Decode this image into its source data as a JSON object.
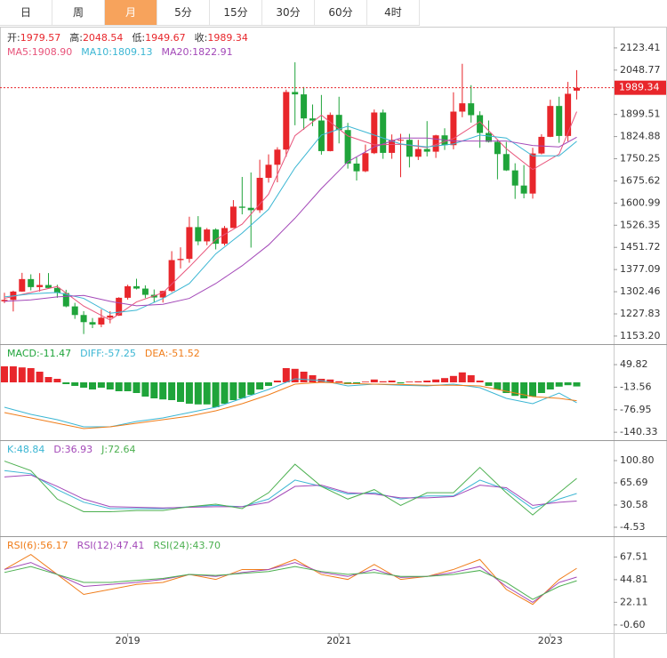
{
  "tabs": [
    "日",
    "周",
    "月",
    "5分",
    "15分",
    "30分",
    "60分",
    "4时"
  ],
  "active_tab": 2,
  "chart_data": [
    {
      "type": "candlestick",
      "categories": [
        null,
        null,
        null,
        null,
        null,
        null,
        null,
        null,
        null,
        null,
        null,
        null,
        null,
        null,
        "2019",
        null,
        null,
        null,
        null,
        null,
        null,
        null,
        null,
        null,
        null,
        null,
        null,
        null,
        null,
        null,
        null,
        null,
        null,
        null,
        null,
        null,
        null,
        null,
        "2021",
        null,
        null,
        null,
        null,
        null,
        null,
        null,
        null,
        null,
        null,
        null,
        null,
        null,
        null,
        null,
        null,
        null,
        null,
        null,
        null,
        null,
        null,
        null,
        "2023",
        null,
        null,
        null
      ],
      "open": [
        1270,
        1275,
        1303,
        1345,
        1318,
        1325,
        1315,
        1298,
        1253,
        1224,
        1200,
        1192,
        1215,
        1222,
        1282,
        1321,
        1313,
        1292,
        1283,
        1305,
        1409,
        1413,
        1520,
        1472,
        1512,
        1464,
        1517,
        1589,
        1585,
        1577,
        1686,
        1730,
        1781,
        1975,
        1967,
        1886,
        1879,
        1776,
        1898,
        1847,
        1734,
        1708,
        1769,
        1906,
        1770,
        1814,
        1814,
        1757,
        1783,
        1774,
        1829,
        1796,
        1909,
        1937,
        1897,
        1837,
        1807,
        1766,
        1711,
        1660,
        1633,
        1768,
        1824,
        1928,
        1827,
        1979.57
      ],
      "high": [
        1299,
        1306,
        1366,
        1361,
        1365,
        1365,
        1326,
        1309,
        1265,
        1237,
        1214,
        1243,
        1237,
        1284,
        1326,
        1346,
        1324,
        1310,
        1306,
        1439,
        1452,
        1555,
        1557,
        1517,
        1516,
        1524,
        1611,
        1689,
        1704,
        1747,
        1765,
        1789,
        1983,
        2075,
        1992,
        1933,
        1965,
        1906,
        1959,
        1871,
        1755,
        1798,
        1916,
        1916,
        1832,
        1834,
        1834,
        1814,
        1877,
        1831,
        1853,
        1974,
        2070,
        1998,
        1910,
        1879,
        1814,
        1807,
        1735,
        1729,
        1787,
        1833,
        1949,
        1959,
        2009,
        2048.54
      ],
      "low": [
        1264,
        1236,
        1302,
        1307,
        1303,
        1314,
        1282,
        1250,
        1211,
        1160,
        1180,
        1183,
        1196,
        1221,
        1276,
        1310,
        1281,
        1266,
        1266,
        1301,
        1381,
        1400,
        1459,
        1459,
        1445,
        1458,
        1517,
        1563,
        1451,
        1568,
        1670,
        1671,
        1757,
        1863,
        1848,
        1860,
        1764,
        1775,
        1802,
        1717,
        1677,
        1705,
        1766,
        1750,
        1750,
        1688,
        1721,
        1746,
        1758,
        1753,
        1780,
        1782,
        1890,
        1872,
        1787,
        1805,
        1681,
        1709,
        1615,
        1617,
        1616,
        1765,
        1823,
        1804,
        1809,
        1949.67
      ],
      "close": [
        1275,
        1303,
        1345,
        1318,
        1325,
        1315,
        1298,
        1253,
        1224,
        1200,
        1192,
        1215,
        1222,
        1282,
        1321,
        1313,
        1292,
        1283,
        1305,
        1409,
        1413,
        1520,
        1472,
        1512,
        1464,
        1517,
        1589,
        1585,
        1577,
        1686,
        1730,
        1781,
        1975,
        1967,
        1886,
        1879,
        1776,
        1898,
        1847,
        1734,
        1708,
        1769,
        1906,
        1770,
        1814,
        1814,
        1757,
        1783,
        1774,
        1829,
        1796,
        1909,
        1937,
        1897,
        1837,
        1807,
        1766,
        1711,
        1660,
        1633,
        1768,
        1824,
        1928,
        1827,
        1969,
        1989.34
      ],
      "up_color": "#e8262b",
      "down_color": "#1fa43a",
      "ylim": [
        1123,
        2186
      ],
      "yticks": [
        {
          "value": 1153.2,
          "label": "1153.20"
        },
        1227.83,
        1302.46,
        1377.09,
        1451.72,
        1526.35,
        1600.99,
        1675.62,
        1750.25,
        1824.88,
        1899.51,
        2048.77,
        2123.41
      ],
      "last_price": 1989.34,
      "legend": [
        [
          {
            "label": "开:",
            "value": "1979.57",
            "color": "#e8262b"
          },
          {
            "label": "高:",
            "value": "2048.54",
            "color": "#e8262b"
          },
          {
            "label": "低:",
            "value": "1949.67",
            "color": "#e8262b"
          },
          {
            "label": "收:",
            "value": "1989.34",
            "color": "#e8262b"
          }
        ],
        [
          {
            "label": "MA5:",
            "value": "1908.90",
            "color": "#e8537a",
            "label_color": "#e8537a"
          },
          {
            "label": "MA10:",
            "value": "1809.13",
            "color": "#3bb6d3",
            "label_color": "#3bb6d3"
          },
          {
            "label": "MA20:",
            "value": "1822.91",
            "color": "#a348b8",
            "label_color": "#a348b8"
          }
        ]
      ],
      "series": [
        {
          "name": "MA5",
          "color": "#e8537a",
          "x": [
            0,
            3,
            6,
            9,
            12,
            15,
            18,
            21,
            24,
            27,
            30,
            33,
            36,
            39,
            42,
            45,
            48,
            51,
            54,
            57,
            60,
            63,
            65
          ],
          "values": [
            1280,
            1300,
            1320,
            1254,
            1207,
            1268,
            1299,
            1386,
            1478,
            1530,
            1631,
            1828,
            1897,
            1827,
            1797,
            1799,
            1788,
            1818,
            1875,
            1784,
            1714,
            1766,
            1908.9
          ]
        },
        {
          "name": "MA10",
          "color": "#3bb6d3",
          "x": [
            0,
            3,
            6,
            9,
            12,
            15,
            18,
            21,
            24,
            27,
            30,
            33,
            36,
            39,
            42,
            45,
            48,
            51,
            54,
            57,
            60,
            63,
            65
          ],
          "values": [
            1285,
            1295,
            1300,
            1280,
            1230,
            1240,
            1280,
            1330,
            1430,
            1500,
            1580,
            1720,
            1830,
            1860,
            1830,
            1800,
            1790,
            1800,
            1830,
            1820,
            1760,
            1760,
            1809.13
          ]
        },
        {
          "name": "MA20",
          "color": "#a348b8",
          "x": [
            0,
            3,
            6,
            9,
            12,
            15,
            18,
            21,
            24,
            27,
            30,
            33,
            36,
            39,
            42,
            45,
            48,
            51,
            54,
            57,
            60,
            63,
            65
          ],
          "values": [
            1270,
            1275,
            1285,
            1290,
            1270,
            1255,
            1260,
            1280,
            1330,
            1390,
            1460,
            1550,
            1650,
            1740,
            1790,
            1820,
            1820,
            1810,
            1810,
            1810,
            1795,
            1790,
            1822.91
          ]
        }
      ]
    },
    {
      "type": "macd",
      "values": [
        45,
        45,
        42,
        40,
        30,
        15,
        10,
        -5,
        -10,
        -15,
        -20,
        -15,
        -20,
        -25,
        -25,
        -30,
        -40,
        -45,
        -48,
        -50,
        -55,
        -60,
        -62,
        -62,
        -70,
        -60,
        -50,
        -45,
        -35,
        -20,
        -10,
        5,
        40,
        38,
        30,
        20,
        10,
        8,
        3,
        -5,
        -5,
        2,
        8,
        3,
        5,
        -3,
        2,
        3,
        5,
        8,
        12,
        18,
        28,
        20,
        5,
        -10,
        -20,
        -30,
        -38,
        -45,
        -40,
        -30,
        -20,
        -12,
        -8,
        -11.47
      ],
      "up_color": "#e8262b",
      "down_color": "#1fa43a",
      "ylim": [
        -155,
        105
      ],
      "yticks": [
        49.82,
        -13.56,
        -76.95,
        -140.33
      ],
      "legend": [
        [
          {
            "label": "MACD:",
            "value": "-11.47",
            "color": "#1fa43a",
            "label_color": "#1fa43a"
          },
          {
            "label": "DIFF:",
            "value": "-57.25",
            "color": "#3bb6d3",
            "label_color": "#3bb6d3"
          },
          {
            "label": "DEA:",
            "value": "-51.52",
            "color": "#f07d1a",
            "label_color": "#f07d1a"
          }
        ]
      ],
      "series": [
        {
          "name": "DIFF",
          "color": "#3bb6d3",
          "x": [
            0,
            3,
            6,
            9,
            12,
            15,
            18,
            21,
            24,
            27,
            30,
            33,
            36,
            39,
            42,
            45,
            48,
            51,
            54,
            57,
            60,
            63,
            65
          ],
          "values": [
            -70,
            -90,
            -105,
            -125,
            -125,
            -110,
            -100,
            -85,
            -70,
            -45,
            -20,
            10,
            5,
            -10,
            -5,
            -8,
            -10,
            -5,
            -15,
            -45,
            -60,
            -30,
            -57.25
          ]
        },
        {
          "name": "DEA",
          "color": "#f07d1a",
          "x": [
            0,
            3,
            6,
            9,
            12,
            15,
            18,
            21,
            24,
            27,
            30,
            33,
            36,
            39,
            42,
            45,
            48,
            51,
            54,
            57,
            60,
            63,
            65
          ],
          "values": [
            -85,
            -100,
            -115,
            -130,
            -125,
            -115,
            -105,
            -95,
            -80,
            -60,
            -35,
            -5,
            0,
            -3,
            -5,
            -6,
            -8,
            -8,
            -10,
            -25,
            -40,
            -45,
            -51.52
          ]
        }
      ]
    },
    {
      "type": "line",
      "ylim": [
        -14.4,
        131.7
      ],
      "yticks": [
        {
          "value": 100.8,
          "label": "100.80"
        },
        65.69,
        30.58,
        -4.53
      ],
      "legend": [
        [
          {
            "label": "K:",
            "value": "48.84",
            "color": "#3bb6d3",
            "label_color": "#3bb6d3"
          },
          {
            "label": "D:",
            "value": "36.93",
            "color": "#a348b8",
            "label_color": "#a348b8"
          },
          {
            "label": "J:",
            "value": "72.64",
            "color": "#4cb050",
            "label_color": "#4cb050"
          }
        ]
      ],
      "series": [
        {
          "name": "K",
          "color": "#3bb6d3",
          "x": [
            0,
            3,
            6,
            9,
            12,
            15,
            18,
            21,
            24,
            27,
            30,
            33,
            36,
            39,
            42,
            45,
            48,
            51,
            54,
            57,
            60,
            63,
            65
          ],
          "values": [
            85,
            80,
            55,
            35,
            25,
            25,
            25,
            28,
            30,
            28,
            40,
            70,
            60,
            48,
            50,
            40,
            45,
            45,
            70,
            55,
            25,
            40,
            48.84
          ]
        },
        {
          "name": "D",
          "color": "#a348b8",
          "x": [
            0,
            3,
            6,
            9,
            12,
            15,
            18,
            21,
            24,
            27,
            30,
            33,
            36,
            39,
            42,
            45,
            48,
            51,
            54,
            57,
            60,
            63,
            65
          ],
          "values": [
            75,
            78,
            60,
            40,
            28,
            27,
            26,
            27,
            28,
            28,
            35,
            60,
            62,
            50,
            48,
            42,
            42,
            44,
            62,
            58,
            30,
            35,
            36.93
          ]
        },
        {
          "name": "J",
          "color": "#4cb050",
          "x": [
            0,
            3,
            6,
            9,
            12,
            15,
            18,
            21,
            24,
            27,
            30,
            33,
            36,
            39,
            42,
            45,
            48,
            51,
            54,
            57,
            60,
            63,
            65
          ],
          "values": [
            100,
            85,
            40,
            20,
            20,
            22,
            22,
            28,
            32,
            25,
            50,
            95,
            60,
            40,
            55,
            30,
            50,
            50,
            90,
            50,
            15,
            50,
            72.64
          ]
        }
      ]
    },
    {
      "type": "line",
      "ylim": [
        -8.8,
        87.5
      ],
      "yticks": [
        67.51,
        44.81,
        22.11,
        {
          "value": -0.6,
          "label": "-0.60"
        }
      ],
      "legend": [
        [
          {
            "label": "RSI(6):",
            "value": "56.17",
            "color": "#f07d1a",
            "label_color": "#f07d1a"
          },
          {
            "label": "RSI(12):",
            "value": "47.41",
            "color": "#a348b8",
            "label_color": "#a348b8"
          },
          {
            "label": "RSI(24):",
            "value": "43.70",
            "color": "#4cb050",
            "label_color": "#4cb050"
          }
        ]
      ],
      "series": [
        {
          "name": "RSI6",
          "color": "#f07d1a",
          "x": [
            0,
            3,
            6,
            9,
            12,
            15,
            18,
            21,
            24,
            27,
            30,
            33,
            36,
            39,
            42,
            45,
            48,
            51,
            54,
            57,
            60,
            63,
            65
          ],
          "values": [
            55,
            70,
            50,
            30,
            35,
            40,
            42,
            50,
            45,
            55,
            55,
            65,
            50,
            45,
            60,
            45,
            48,
            55,
            65,
            35,
            20,
            45,
            56.17
          ]
        },
        {
          "name": "RSI12",
          "color": "#a348b8",
          "x": [
            0,
            3,
            6,
            9,
            12,
            15,
            18,
            21,
            24,
            27,
            30,
            33,
            36,
            39,
            42,
            45,
            48,
            51,
            54,
            57,
            60,
            63,
            65
          ],
          "values": [
            55,
            62,
            50,
            38,
            40,
            42,
            45,
            50,
            48,
            52,
            55,
            62,
            52,
            48,
            55,
            47,
            48,
            52,
            58,
            38,
            22,
            42,
            47.41
          ]
        },
        {
          "name": "RSI24",
          "color": "#4cb050",
          "x": [
            0,
            3,
            6,
            9,
            12,
            15,
            18,
            21,
            24,
            27,
            30,
            33,
            36,
            39,
            42,
            45,
            48,
            51,
            54,
            57,
            60,
            63,
            65
          ],
          "values": [
            52,
            58,
            50,
            42,
            42,
            44,
            46,
            50,
            49,
            51,
            53,
            58,
            53,
            50,
            52,
            48,
            48,
            50,
            54,
            42,
            25,
            38,
            43.7
          ]
        }
      ]
    }
  ]
}
